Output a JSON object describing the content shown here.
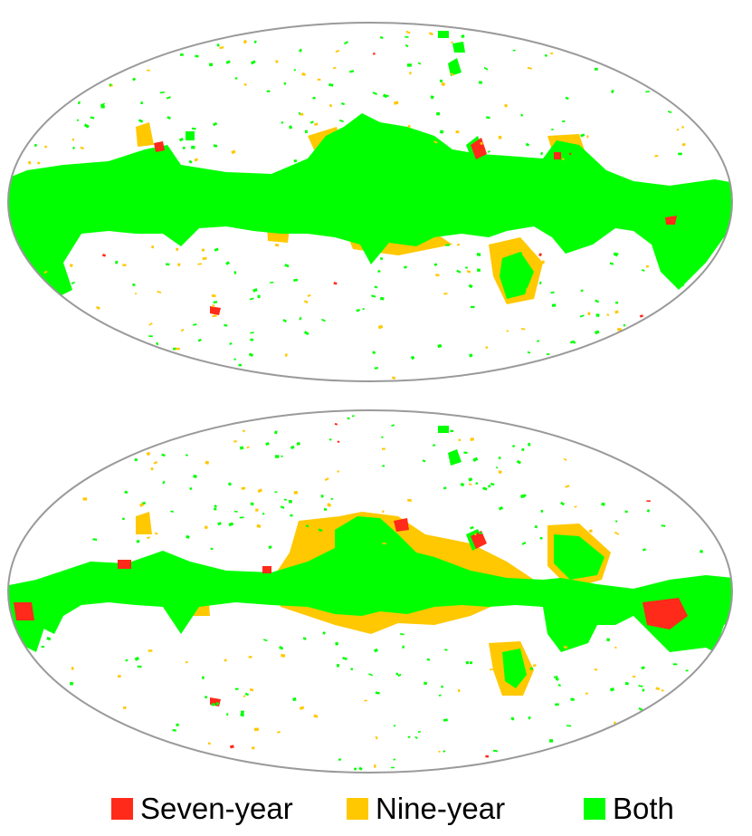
{
  "colors": {
    "seven_year": "#ff2a1a",
    "nine_year": "#ffc800",
    "both": "#00ff00",
    "outline": "#9a9a9a"
  },
  "legend": {
    "items": [
      {
        "key": "seven_year",
        "label": "Seven-year"
      },
      {
        "key": "nine_year",
        "label": "Nine-year"
      },
      {
        "key": "both",
        "label": "Both"
      }
    ]
  },
  "maps": [
    {
      "name": "mask-map-top"
    },
    {
      "name": "mask-map-bottom"
    }
  ]
}
